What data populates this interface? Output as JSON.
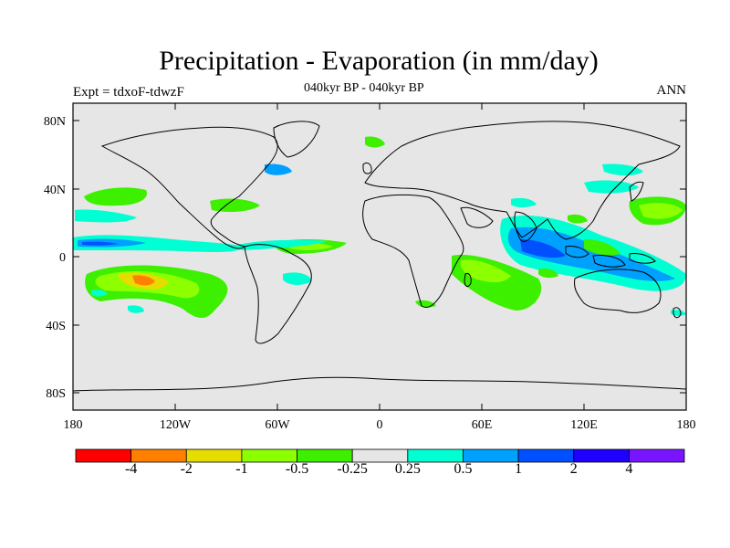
{
  "title": "Precipitation - Evaporation (in mm/day)",
  "subtitle": "040kyr BP - 040kyr BP",
  "left_label": "Expt = tdxoF-tdwzF",
  "right_label": "ANN",
  "lat_ticks": [
    "80N",
    "40N",
    "0",
    "40S",
    "80S"
  ],
  "lon_ticks": [
    "180",
    "120W",
    "60W",
    "0",
    "60E",
    "120E",
    "180"
  ],
  "colorbar": {
    "colors": [
      "#ff0000",
      "#ff8000",
      "#e6dc00",
      "#8cff00",
      "#3cf000",
      "#e6e6e6",
      "#00ffd2",
      "#00a0ff",
      "#0050ff",
      "#1e00ff",
      "#7814ff"
    ],
    "labels": [
      "-4",
      "-2",
      "-1",
      "-0.5",
      "-0.25",
      "0.25",
      "0.5",
      "1",
      "2",
      "4"
    ]
  },
  "colors": {
    "ocean_background": "#e6e6e6",
    "coastline": "#000000"
  }
}
